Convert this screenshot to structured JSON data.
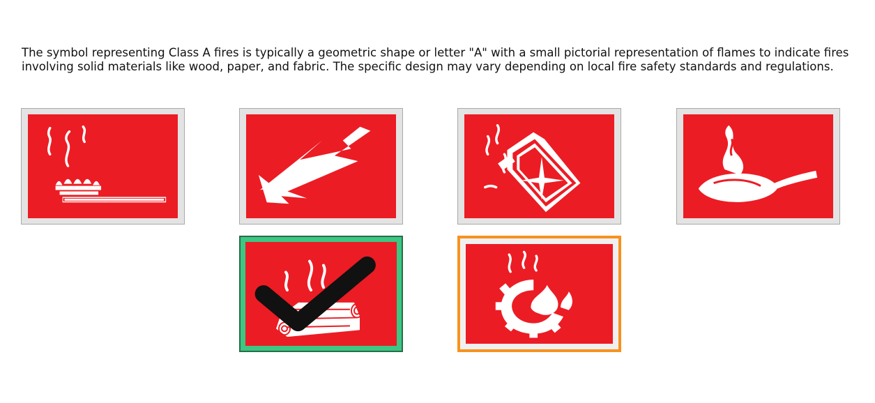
{
  "prompt": "The symbol representing Class A fires is typically a geometric shape or letter \"A\" with a small pictorial representation of flames to indicate fires involving solid materials like wood, paper, and fabric. The specific design may vary depending on local fire safety standards and regulations.",
  "colors": {
    "panel_red": "#ec1c24",
    "selected_green": "#3cc783",
    "hover_orange": "#f7931e"
  },
  "options": [
    {
      "id": "gas-burner",
      "icon": "gas-burner-fire-icon",
      "state": "default"
    },
    {
      "id": "electrical",
      "icon": "lightning-arrow-icon",
      "state": "default"
    },
    {
      "id": "flammable-liquid",
      "icon": "jerrycan-fire-icon",
      "state": "default"
    },
    {
      "id": "cooking-oil",
      "icon": "frying-pan-fire-icon",
      "state": "default"
    },
    {
      "id": "solid-wood",
      "icon": "burning-logs-icon",
      "state": "selected"
    },
    {
      "id": "metal-industrial",
      "icon": "gear-fire-icon",
      "state": "hover"
    }
  ]
}
